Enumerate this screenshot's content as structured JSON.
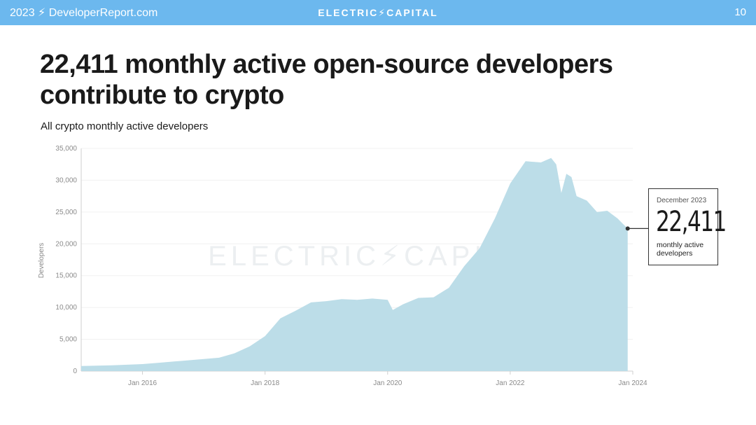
{
  "header": {
    "left": "2023 ⚡ DeveloperReport.com",
    "center": "ELECTRIC⚡CAPITAL",
    "page_number": "10"
  },
  "slide": {
    "title_line1": "22,411 monthly active open-source developers",
    "title_line2": "contribute to crypto"
  },
  "watermark": "ELECTRIC⚡CAPITAL",
  "callout": {
    "month": "December 2023",
    "value": "22,411",
    "description": "monthly active developers"
  },
  "colors": {
    "header": "#6cb8ee",
    "area": "#bcdde8",
    "text": "#1a1a1a"
  },
  "chart_data": {
    "type": "area",
    "title": "All crypto monthly active developers",
    "ylabel": "Developers",
    "xlabel": "",
    "ylim": [
      0,
      35000
    ],
    "yticks": [
      0,
      5000,
      10000,
      15000,
      20000,
      25000,
      30000,
      35000
    ],
    "ytick_labels": [
      "0",
      "5,000",
      "10,000",
      "15,000",
      "20,000",
      "25,000",
      "30,000",
      "35,000"
    ],
    "xticks": [
      "2016-01",
      "2018-01",
      "2020-01",
      "2022-01",
      "2024-01"
    ],
    "xtick_labels": [
      "Jan 2016",
      "Jan 2018",
      "Jan 2020",
      "Jan 2022",
      "Jan 2024"
    ],
    "xlim": [
      "2015-01",
      "2024-01"
    ],
    "grid": "horizontal",
    "series": [
      {
        "x": [
          "2015-01",
          "2015-07",
          "2016-01",
          "2016-04",
          "2016-07",
          "2017-01",
          "2017-04",
          "2017-07",
          "2017-10",
          "2018-01",
          "2018-04",
          "2018-07",
          "2018-10",
          "2019-01",
          "2019-04",
          "2019-07",
          "2019-10",
          "2020-01",
          "2020-02",
          "2020-04",
          "2020-07",
          "2020-10",
          "2021-01",
          "2021-04",
          "2021-07",
          "2021-10",
          "2022-01",
          "2022-04",
          "2022-07",
          "2022-09",
          "2022-10",
          "2022-11",
          "2022-12",
          "2023-01",
          "2023-02",
          "2023-04",
          "2023-06",
          "2023-08",
          "2023-10",
          "2023-11",
          "2023-12"
        ],
        "values": [
          800,
          900,
          1100,
          1300,
          1500,
          1900,
          2100,
          2800,
          3900,
          5500,
          8300,
          9500,
          10800,
          11000,
          11300,
          11200,
          11400,
          11200,
          9600,
          10500,
          11500,
          11600,
          13100,
          16500,
          19300,
          24000,
          29500,
          33000,
          32800,
          33500,
          32500,
          28000,
          31000,
          30500,
          27500,
          26800,
          25000,
          25200,
          24000,
          23200,
          22411
        ]
      }
    ]
  }
}
